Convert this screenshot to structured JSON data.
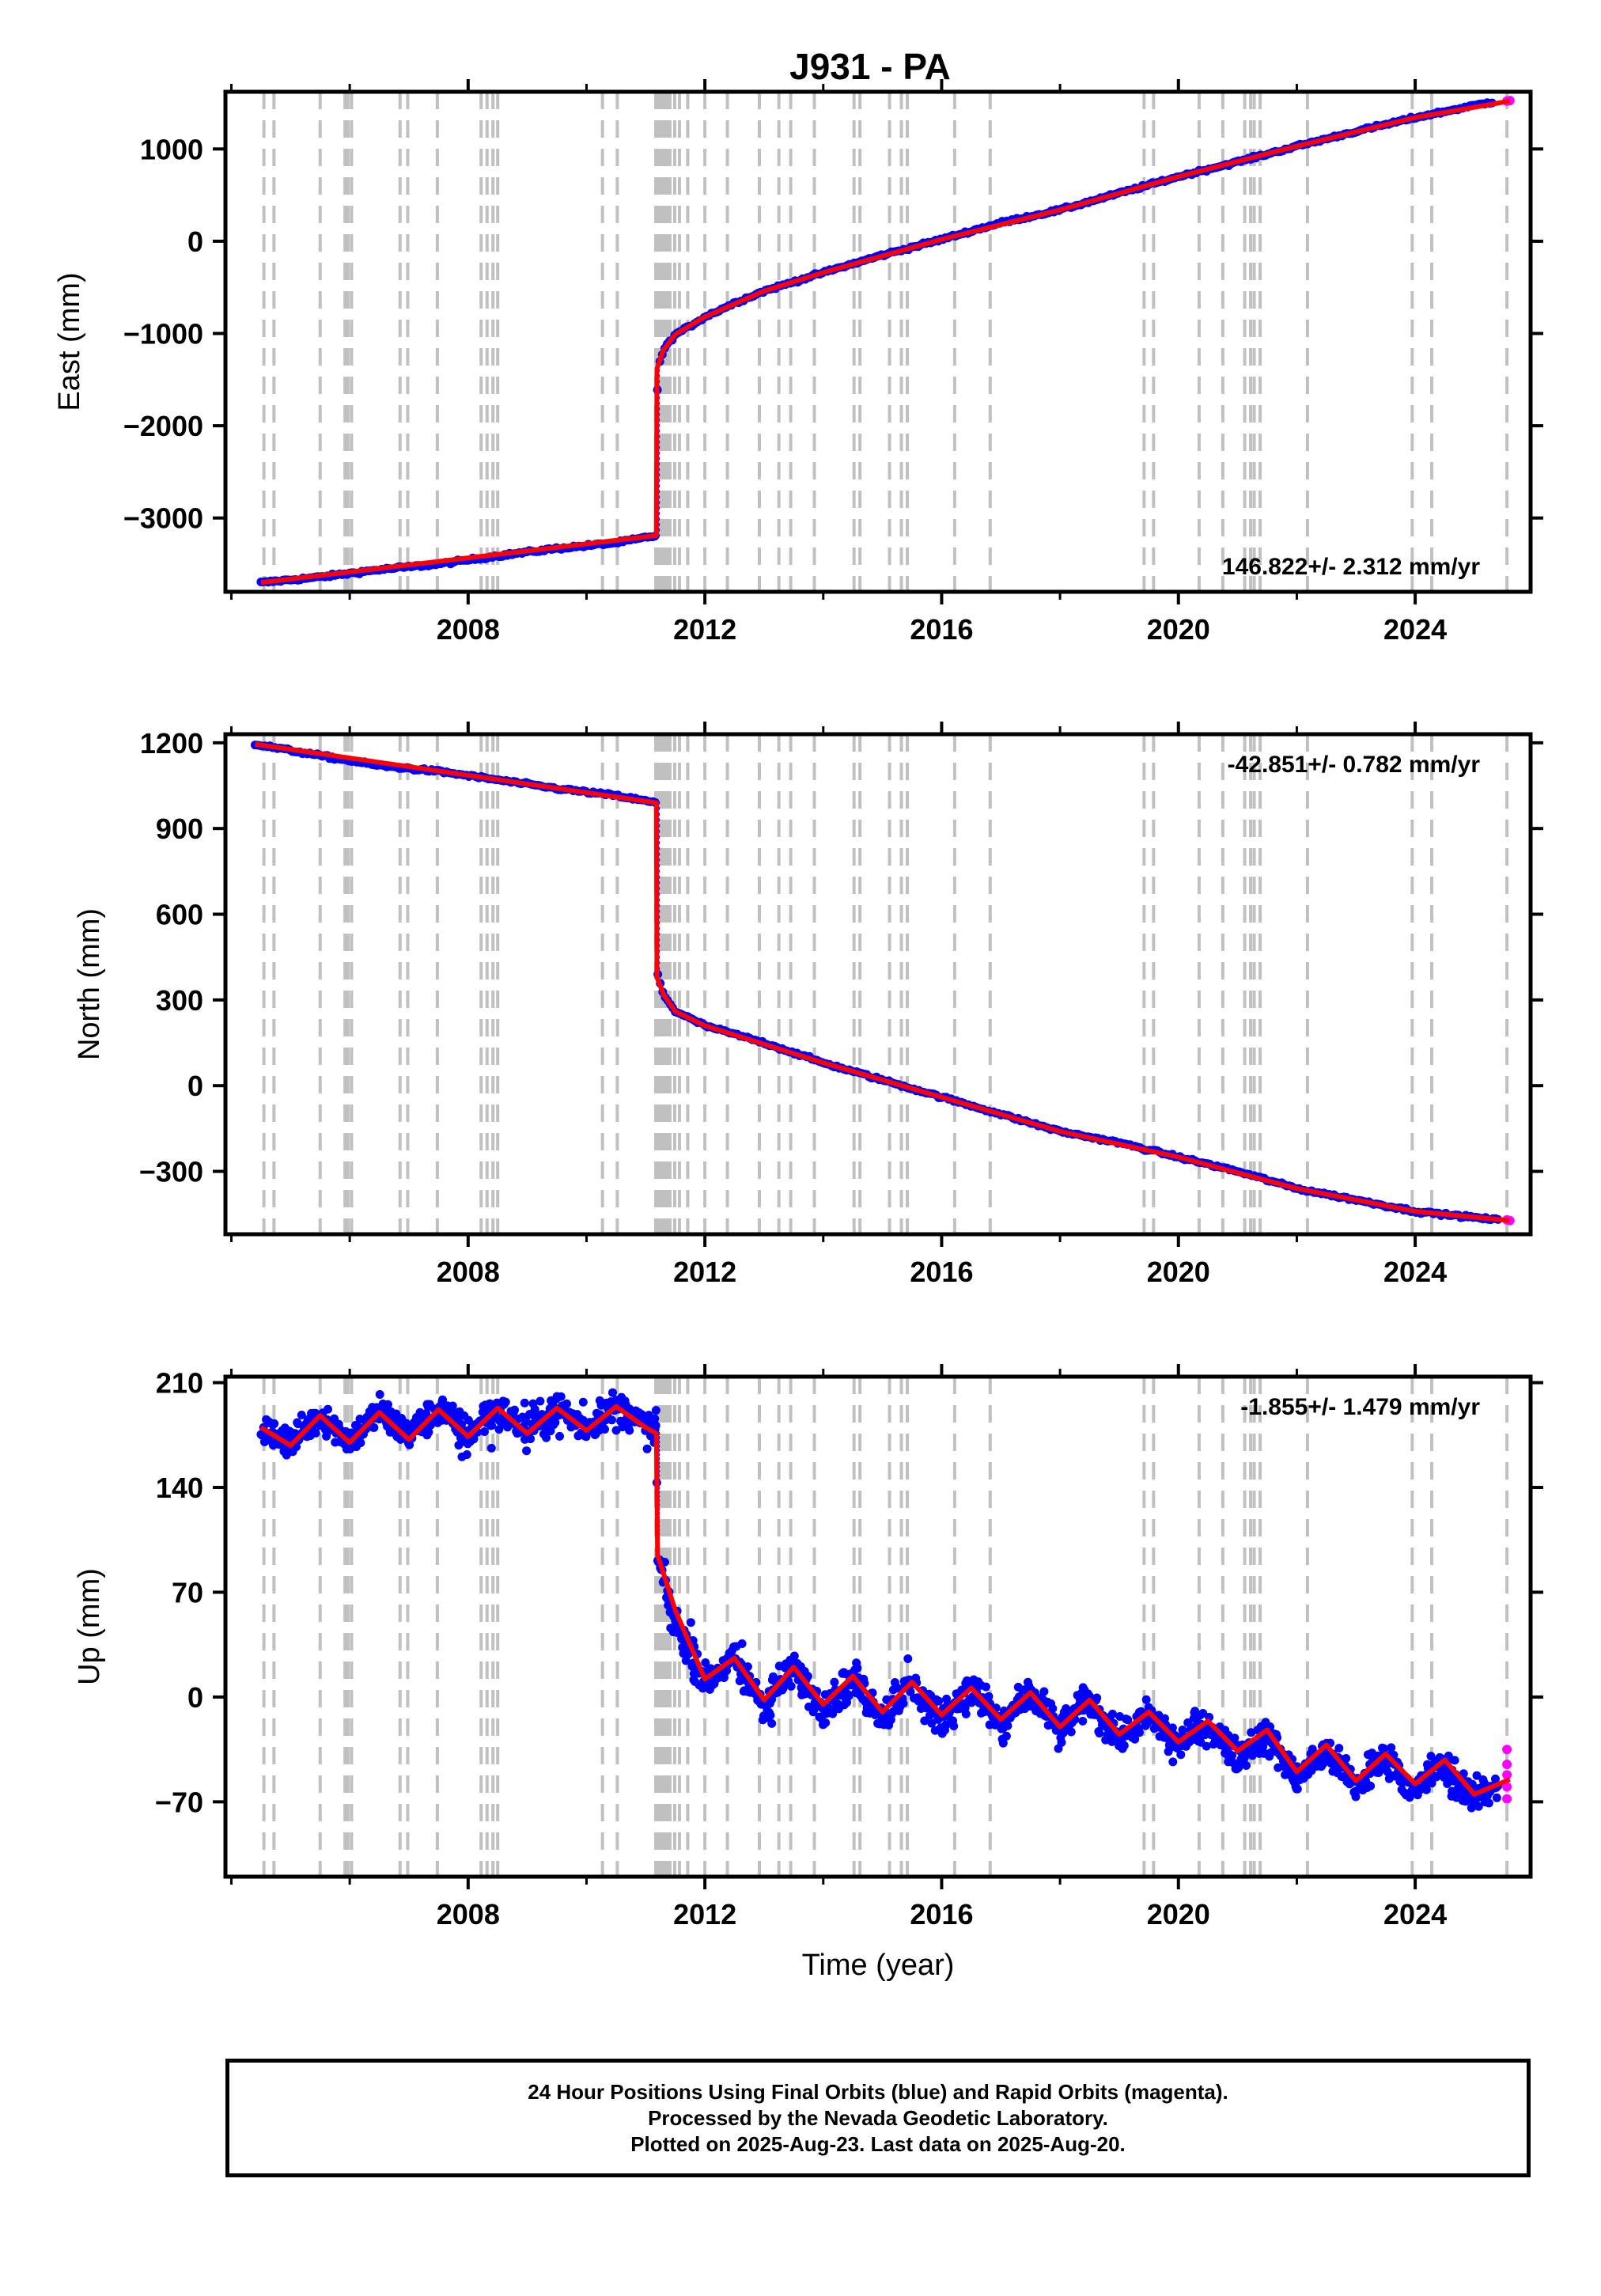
{
  "title": "J931 - PA",
  "footer": {
    "line1": "24 Hour Positions Using Final Orbits (blue) and Rapid Orbits (magenta).",
    "line2": "Processed by the Nevada Geodetic Laboratory.",
    "line3": "Plotted on 2025-Aug-23. Last data on 2025-Aug-20."
  },
  "colors": {
    "final_orbits": "#0000ff",
    "rapid_orbits": "#ff00ff",
    "model_fit": "#ff0000",
    "event_lines": "#c0c0c0"
  },
  "chart_data": [
    {
      "type": "scatter",
      "ylabel": "East (mm)",
      "xlabel": "",
      "xlim": [
        2003.9,
        2025.95
      ],
      "ylim": [
        -3800,
        1620
      ],
      "xticks": [
        2008,
        2012,
        2016,
        2020,
        2024
      ],
      "yticks": [
        1000,
        0,
        -1000,
        -2000,
        -3000
      ],
      "rate_label": "146.822+/- 2.312 mm/yr",
      "rate_label_position": "bottom-right",
      "series": [
        {
          "role": "final",
          "x": [
            2004.5,
            2005.5,
            2006.5,
            2007.5,
            2008.5,
            2009.5,
            2010.5,
            2011.18,
            2011.2,
            2011.3,
            2011.5,
            2011.75,
            2012.0,
            2012.5,
            2013.0,
            2014.0,
            2015.0,
            2016.0,
            2017.0,
            2018.0,
            2019.0,
            2020.0,
            2021.0,
            2022.0,
            2023.0,
            2024.0,
            2025.3
          ],
          "y": [
            -3700,
            -3640,
            -3560,
            -3500,
            -3410,
            -3330,
            -3270,
            -3190,
            -1400,
            -1180,
            -1010,
            -920,
            -820,
            -670,
            -540,
            -340,
            -150,
            20,
            200,
            340,
            520,
            700,
            860,
            1030,
            1190,
            1340,
            1510
          ]
        },
        {
          "role": "rapid",
          "x": [
            2025.55,
            2025.6
          ],
          "y": [
            1520,
            1525
          ]
        },
        {
          "role": "model",
          "x": [
            2004.5,
            2011.18,
            2011.19,
            2011.3,
            2011.5,
            2012.0,
            2013.0,
            2014.0,
            2016.0,
            2018.0,
            2020.0,
            2022.0,
            2024.0,
            2025.6
          ],
          "y": [
            -3700,
            -3190,
            -1380,
            -1180,
            -1010,
            -820,
            -540,
            -340,
            20,
            340,
            700,
            1030,
            1340,
            1520
          ]
        }
      ]
    },
    {
      "type": "scatter",
      "ylabel": "North (mm)",
      "xlabel": "",
      "xlim": [
        2003.9,
        2025.95
      ],
      "ylim": [
        -520,
        1230
      ],
      "xticks": [
        2008,
        2012,
        2016,
        2020,
        2024
      ],
      "yticks": [
        1200,
        900,
        600,
        300,
        0,
        -300
      ],
      "rate_label": "-42.851+/- 0.782 mm/yr",
      "rate_label_position": "top-right",
      "series": [
        {
          "role": "final",
          "x": [
            2004.4,
            2005.5,
            2006.5,
            2007.5,
            2008.5,
            2009.5,
            2010.5,
            2011.18,
            2011.2,
            2011.3,
            2011.5,
            2012.0,
            2013.0,
            2014.0,
            2015.0,
            2016.0,
            2017.0,
            2018.0,
            2019.0,
            2020.0,
            2021.0,
            2022.0,
            2023.0,
            2024.0,
            2025.4
          ],
          "y": [
            1195,
            1155,
            1120,
            1100,
            1070,
            1040,
            1015,
            990,
            390,
            320,
            260,
            210,
            150,
            80,
            20,
            -40,
            -100,
            -160,
            -200,
            -250,
            -300,
            -360,
            -400,
            -440,
            -470
          ]
        },
        {
          "role": "rapid",
          "x": [
            2025.55,
            2025.6
          ],
          "y": [
            -470,
            -472
          ]
        },
        {
          "role": "model",
          "x": [
            2004.4,
            2011.18,
            2011.19,
            2011.3,
            2011.5,
            2012.0,
            2014.0,
            2016.0,
            2018.0,
            2020.0,
            2022.0,
            2024.0,
            2025.6
          ],
          "y": [
            1195,
            990,
            380,
            320,
            260,
            210,
            80,
            -40,
            -160,
            -250,
            -360,
            -440,
            -472
          ]
        }
      ]
    },
    {
      "type": "scatter",
      "ylabel": "Up (mm)",
      "xlabel": "Time (year)",
      "xlim": [
        2003.9,
        2025.95
      ],
      "ylim": [
        -120,
        214
      ],
      "xticks": [
        2008,
        2012,
        2016,
        2020,
        2024
      ],
      "yticks": [
        210,
        140,
        70,
        0,
        -70
      ],
      "rate_label": "-1.855+/- 1.479 mm/yr",
      "rate_label_position": "top-right",
      "series": [
        {
          "role": "final",
          "x": [
            2004.5,
            2005.0,
            2005.5,
            2006.0,
            2006.5,
            2007.0,
            2007.5,
            2008.0,
            2008.5,
            2009.0,
            2009.5,
            2010.0,
            2010.5,
            2011.0,
            2011.18,
            2011.2,
            2011.5,
            2012.0,
            2012.5,
            2013.0,
            2013.5,
            2014.0,
            2014.5,
            2015.0,
            2015.5,
            2016.0,
            2016.5,
            2017.0,
            2017.5,
            2018.0,
            2018.5,
            2019.0,
            2019.5,
            2020.0,
            2020.5,
            2021.0,
            2021.5,
            2022.0,
            2022.5,
            2023.0,
            2023.5,
            2024.0,
            2024.5,
            2025.0,
            2025.4
          ],
          "y": [
            180,
            170,
            188,
            172,
            190,
            175,
            192,
            176,
            192,
            178,
            192,
            180,
            195,
            180,
            176,
            92,
            50,
            10,
            25,
            -5,
            18,
            -8,
            12,
            -12,
            8,
            -15,
            5,
            -18,
            2,
            -22,
            -2,
            -28,
            -12,
            -32,
            -18,
            -40,
            -25,
            -55,
            -35,
            -60,
            -40,
            -62,
            -45,
            -68,
            -55
          ]
        },
        {
          "role": "rapid",
          "x": [
            2025.55,
            2025.55,
            2025.55,
            2025.55,
            2025.55
          ],
          "y": [
            -35,
            -45,
            -52,
            -60,
            -68
          ]
        },
        {
          "role": "model",
          "x": [
            2004.5,
            2005.0,
            2005.5,
            2006.0,
            2006.5,
            2007.0,
            2007.5,
            2008.0,
            2008.5,
            2009.0,
            2009.5,
            2010.0,
            2010.5,
            2011.0,
            2011.18,
            2011.2,
            2011.5,
            2012.0,
            2012.5,
            2013.0,
            2013.5,
            2014.0,
            2014.5,
            2015.0,
            2015.5,
            2016.0,
            2016.5,
            2017.0,
            2017.5,
            2018.0,
            2018.5,
            2019.0,
            2019.5,
            2020.0,
            2020.5,
            2021.0,
            2021.5,
            2022.0,
            2022.5,
            2023.0,
            2023.5,
            2024.0,
            2024.5,
            2025.0,
            2025.6
          ],
          "y": [
            180,
            168,
            188,
            170,
            190,
            172,
            192,
            174,
            193,
            176,
            193,
            178,
            194,
            180,
            176,
            95,
            58,
            12,
            26,
            -2,
            20,
            -5,
            14,
            -10,
            10,
            -12,
            6,
            -15,
            3,
            -20,
            -2,
            -25,
            -10,
            -30,
            -16,
            -36,
            -22,
            -50,
            -32,
            -56,
            -38,
            -58,
            -42,
            -65,
            -55
          ]
        }
      ]
    }
  ],
  "event_years": [
    2004.55,
    2004.72,
    2005.5,
    2005.92,
    2005.97,
    2006.03,
    2006.85,
    2006.98,
    2007.48,
    2008.22,
    2008.32,
    2008.42,
    2008.5,
    2010.27,
    2010.52,
    2011.17,
    2011.22,
    2011.26,
    2011.31,
    2011.36,
    2011.41,
    2011.49,
    2011.57,
    2011.71,
    2012.0,
    2012.38,
    2012.92,
    2013.25,
    2013.45,
    2013.85,
    2014.52,
    2014.62,
    2015.12,
    2015.32,
    2015.42,
    2016.22,
    2016.82,
    2019.42,
    2019.58,
    2020.35,
    2020.75,
    2021.12,
    2021.22,
    2021.28,
    2021.38,
    2022.18,
    2023.95,
    2024.28,
    2025.55
  ]
}
